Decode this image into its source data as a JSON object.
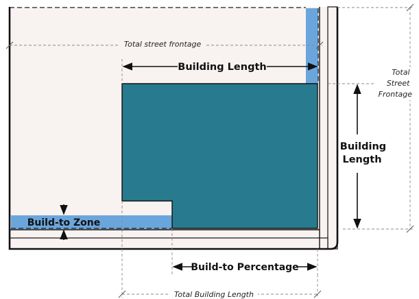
{
  "labels": {
    "total_street_frontage_top": "Total street frontage",
    "building_length_top": "Building Length",
    "total_street_frontage_right": [
      "Total",
      "Street",
      "Frontage"
    ],
    "building_length_right": [
      "Building",
      "Length"
    ],
    "build_to_zone": "Build-to Zone",
    "build_to_percentage": "Build-to Percentage",
    "total_building_length": "Total Building Length"
  },
  "colors": {
    "lot_fill": "#f8f2f0",
    "build_to_zone_fill": "#6aa6dc",
    "building_fill": "#287b8e",
    "outline": "#111111"
  }
}
